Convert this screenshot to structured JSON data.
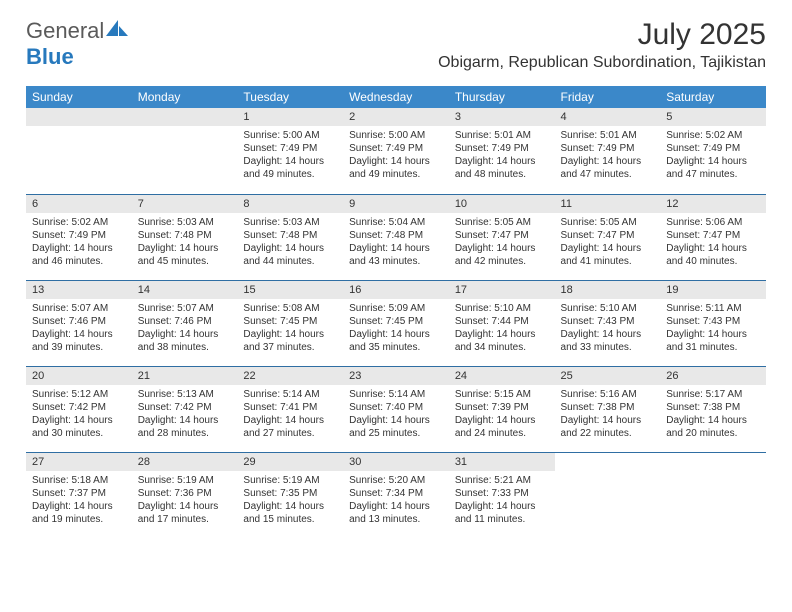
{
  "logo": {
    "text1": "General",
    "text2": "Blue"
  },
  "title": "July 2025",
  "location": "Obigarm, Republican Subordination, Tajikistan",
  "colors": {
    "header_bg": "#3b88c9",
    "header_text": "#ffffff",
    "daynum_bg": "#e8e8e8",
    "row_border": "#2f6ea3",
    "logo_gray": "#5a5a5a",
    "logo_blue": "#2779bd",
    "text": "#333333"
  },
  "fonts": {
    "title_size": 30,
    "location_size": 16,
    "header_size": 12,
    "daynum_size": 11,
    "info_size": 10
  },
  "day_headers": [
    "Sunday",
    "Monday",
    "Tuesday",
    "Wednesday",
    "Thursday",
    "Friday",
    "Saturday"
  ],
  "weeks": [
    [
      null,
      null,
      {
        "n": "1",
        "sr": "5:00 AM",
        "ss": "7:49 PM",
        "dl": "14 hours and 49 minutes."
      },
      {
        "n": "2",
        "sr": "5:00 AM",
        "ss": "7:49 PM",
        "dl": "14 hours and 49 minutes."
      },
      {
        "n": "3",
        "sr": "5:01 AM",
        "ss": "7:49 PM",
        "dl": "14 hours and 48 minutes."
      },
      {
        "n": "4",
        "sr": "5:01 AM",
        "ss": "7:49 PM",
        "dl": "14 hours and 47 minutes."
      },
      {
        "n": "5",
        "sr": "5:02 AM",
        "ss": "7:49 PM",
        "dl": "14 hours and 47 minutes."
      }
    ],
    [
      {
        "n": "6",
        "sr": "5:02 AM",
        "ss": "7:49 PM",
        "dl": "14 hours and 46 minutes."
      },
      {
        "n": "7",
        "sr": "5:03 AM",
        "ss": "7:48 PM",
        "dl": "14 hours and 45 minutes."
      },
      {
        "n": "8",
        "sr": "5:03 AM",
        "ss": "7:48 PM",
        "dl": "14 hours and 44 minutes."
      },
      {
        "n": "9",
        "sr": "5:04 AM",
        "ss": "7:48 PM",
        "dl": "14 hours and 43 minutes."
      },
      {
        "n": "10",
        "sr": "5:05 AM",
        "ss": "7:47 PM",
        "dl": "14 hours and 42 minutes."
      },
      {
        "n": "11",
        "sr": "5:05 AM",
        "ss": "7:47 PM",
        "dl": "14 hours and 41 minutes."
      },
      {
        "n": "12",
        "sr": "5:06 AM",
        "ss": "7:47 PM",
        "dl": "14 hours and 40 minutes."
      }
    ],
    [
      {
        "n": "13",
        "sr": "5:07 AM",
        "ss": "7:46 PM",
        "dl": "14 hours and 39 minutes."
      },
      {
        "n": "14",
        "sr": "5:07 AM",
        "ss": "7:46 PM",
        "dl": "14 hours and 38 minutes."
      },
      {
        "n": "15",
        "sr": "5:08 AM",
        "ss": "7:45 PM",
        "dl": "14 hours and 37 minutes."
      },
      {
        "n": "16",
        "sr": "5:09 AM",
        "ss": "7:45 PM",
        "dl": "14 hours and 35 minutes."
      },
      {
        "n": "17",
        "sr": "5:10 AM",
        "ss": "7:44 PM",
        "dl": "14 hours and 34 minutes."
      },
      {
        "n": "18",
        "sr": "5:10 AM",
        "ss": "7:43 PM",
        "dl": "14 hours and 33 minutes."
      },
      {
        "n": "19",
        "sr": "5:11 AM",
        "ss": "7:43 PM",
        "dl": "14 hours and 31 minutes."
      }
    ],
    [
      {
        "n": "20",
        "sr": "5:12 AM",
        "ss": "7:42 PM",
        "dl": "14 hours and 30 minutes."
      },
      {
        "n": "21",
        "sr": "5:13 AM",
        "ss": "7:42 PM",
        "dl": "14 hours and 28 minutes."
      },
      {
        "n": "22",
        "sr": "5:14 AM",
        "ss": "7:41 PM",
        "dl": "14 hours and 27 minutes."
      },
      {
        "n": "23",
        "sr": "5:14 AM",
        "ss": "7:40 PM",
        "dl": "14 hours and 25 minutes."
      },
      {
        "n": "24",
        "sr": "5:15 AM",
        "ss": "7:39 PM",
        "dl": "14 hours and 24 minutes."
      },
      {
        "n": "25",
        "sr": "5:16 AM",
        "ss": "7:38 PM",
        "dl": "14 hours and 22 minutes."
      },
      {
        "n": "26",
        "sr": "5:17 AM",
        "ss": "7:38 PM",
        "dl": "14 hours and 20 minutes."
      }
    ],
    [
      {
        "n": "27",
        "sr": "5:18 AM",
        "ss": "7:37 PM",
        "dl": "14 hours and 19 minutes."
      },
      {
        "n": "28",
        "sr": "5:19 AM",
        "ss": "7:36 PM",
        "dl": "14 hours and 17 minutes."
      },
      {
        "n": "29",
        "sr": "5:19 AM",
        "ss": "7:35 PM",
        "dl": "14 hours and 15 minutes."
      },
      {
        "n": "30",
        "sr": "5:20 AM",
        "ss": "7:34 PM",
        "dl": "14 hours and 13 minutes."
      },
      {
        "n": "31",
        "sr": "5:21 AM",
        "ss": "7:33 PM",
        "dl": "14 hours and 11 minutes."
      },
      null,
      null
    ]
  ],
  "labels": {
    "sunrise": "Sunrise:",
    "sunset": "Sunset:",
    "daylight": "Daylight:"
  }
}
